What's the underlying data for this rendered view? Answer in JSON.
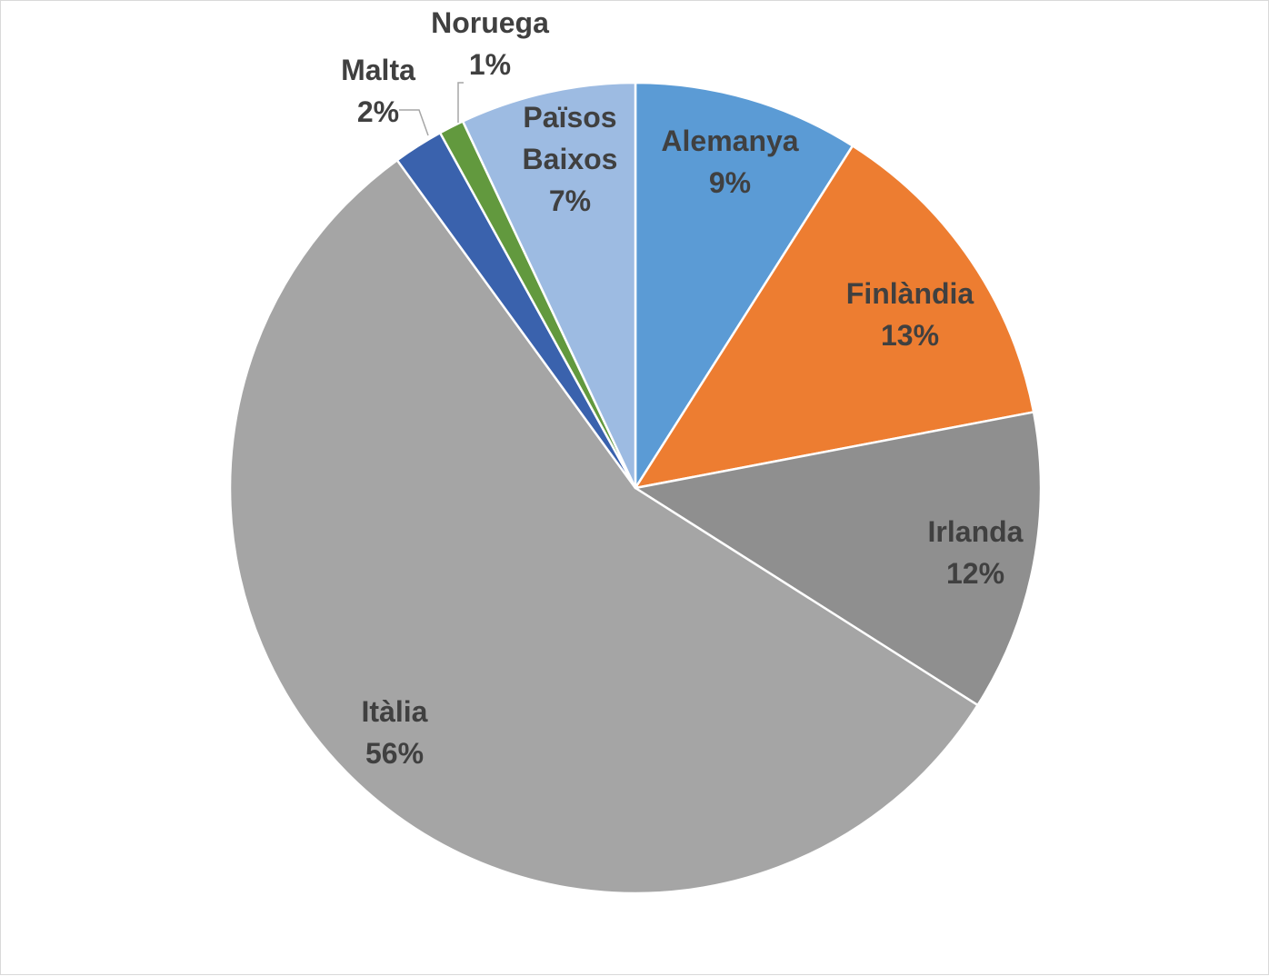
{
  "chart_data": {
    "type": "pie",
    "title": "",
    "categories": [
      "Alemanya",
      "Finlàndia",
      "Irlanda",
      "Itàlia",
      "Malta",
      "Noruega",
      "Països Baixos"
    ],
    "values": [
      9,
      13,
      12,
      56,
      2,
      1,
      7
    ],
    "value_labels": [
      "9%",
      "13%",
      "12%",
      "56%",
      "2%",
      "1%",
      "7%"
    ],
    "start_angle_deg": 0,
    "direction": "clockwise",
    "legend": "none",
    "colors": [
      "#5b9bd5",
      "#ed7d31",
      "#8f8f8f",
      "#a5a5a5",
      "#3a62ad",
      "#62993e",
      "#9dbbe2"
    ],
    "label_color": "#404040",
    "slice_border_color": "#ffffff"
  }
}
